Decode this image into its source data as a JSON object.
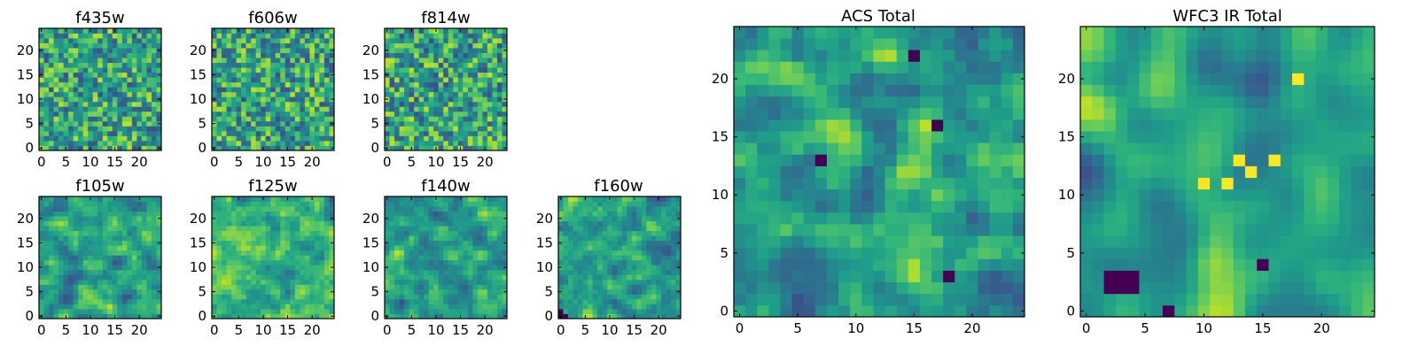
{
  "colormap": "viridis",
  "colors": {
    "frame": "#000000",
    "background": "#ffffff"
  },
  "chart_data": [
    {
      "type": "heatmap",
      "title": "f435w",
      "grid_size": 25,
      "xlim": [
        0,
        25
      ],
      "ylim": [
        0,
        25
      ],
      "x_ticks": [
        0,
        5,
        10,
        15,
        20
      ],
      "y_ticks": [
        0,
        5,
        10,
        15,
        20
      ],
      "texture": {
        "seed": 11,
        "smooth": 0.15,
        "levels": 8,
        "hot": [],
        "cold": []
      }
    },
    {
      "type": "heatmap",
      "title": "f606w",
      "grid_size": 25,
      "xlim": [
        0,
        25
      ],
      "ylim": [
        0,
        25
      ],
      "x_ticks": [
        0,
        5,
        10,
        15,
        20
      ],
      "y_ticks": [
        0,
        5,
        10,
        15,
        20
      ],
      "texture": {
        "seed": 23,
        "smooth": 0.15,
        "levels": 8,
        "hot": [],
        "cold": []
      }
    },
    {
      "type": "heatmap",
      "title": "f814w",
      "grid_size": 25,
      "xlim": [
        0,
        25
      ],
      "ylim": [
        0,
        25
      ],
      "x_ticks": [
        0,
        5,
        10,
        15,
        20
      ],
      "y_ticks": [
        0,
        5,
        10,
        15,
        20
      ],
      "texture": {
        "seed": 37,
        "smooth": 0.15,
        "levels": 8,
        "hot": [],
        "cold": []
      }
    },
    {
      "type": "heatmap",
      "title": "f105w",
      "grid_size": 25,
      "xlim": [
        0,
        25
      ],
      "ylim": [
        0,
        25
      ],
      "x_ticks": [
        0,
        5,
        10,
        15,
        20
      ],
      "y_ticks": [
        0,
        5,
        10,
        15,
        20
      ],
      "texture": {
        "seed": 41,
        "smooth": 0.7,
        "levels": 10,
        "hot": [],
        "cold": []
      }
    },
    {
      "type": "heatmap",
      "title": "f125w",
      "grid_size": 25,
      "xlim": [
        0,
        25
      ],
      "ylim": [
        0,
        25
      ],
      "x_ticks": [
        0,
        5,
        10,
        15,
        20
      ],
      "y_ticks": [
        0,
        5,
        10,
        15,
        20
      ],
      "texture": {
        "seed": 53,
        "smooth": 0.7,
        "levels": 10,
        "hot": [],
        "cold": []
      }
    },
    {
      "type": "heatmap",
      "title": "f140w",
      "grid_size": 25,
      "xlim": [
        0,
        25
      ],
      "ylim": [
        0,
        25
      ],
      "x_ticks": [
        0,
        5,
        10,
        15,
        20
      ],
      "y_ticks": [
        0,
        5,
        10,
        15,
        20
      ],
      "texture": {
        "seed": 67,
        "smooth": 0.7,
        "levels": 10,
        "hot": [],
        "cold": []
      }
    },
    {
      "type": "heatmap",
      "title": "f160w",
      "grid_size": 25,
      "xlim": [
        0,
        25
      ],
      "ylim": [
        0,
        25
      ],
      "x_ticks": [
        0,
        5,
        10,
        15,
        20
      ],
      "y_ticks": [
        0,
        5,
        10,
        15,
        20
      ],
      "texture": {
        "seed": 79,
        "smooth": 0.7,
        "levels": 10,
        "hot": [],
        "cold": [
          [
            0,
            0
          ],
          [
            1,
            0
          ],
          [
            0,
            1
          ]
        ]
      }
    },
    {
      "type": "heatmap",
      "title": "ACS Total",
      "grid_size": 25,
      "xlim": [
        0,
        25
      ],
      "ylim": [
        0,
        25
      ],
      "x_ticks": [
        0,
        10,
        20
      ],
      "x_minor_ticks": [
        5,
        15
      ],
      "y_ticks": [
        0,
        5,
        10,
        15,
        20
      ],
      "texture": {
        "seed": 97,
        "smooth": 0.35,
        "levels": 10,
        "hot": [],
        "cold": [
          [
            7,
            13
          ],
          [
            15,
            22
          ],
          [
            18,
            3
          ],
          [
            17,
            16
          ]
        ]
      }
    },
    {
      "type": "heatmap",
      "title": "WFC3 IR Total",
      "grid_size": 25,
      "xlim": [
        0,
        25
      ],
      "ylim": [
        0,
        25
      ],
      "x_ticks": [
        0,
        10,
        20
      ],
      "x_minor_ticks": [
        5,
        15
      ],
      "y_ticks": [
        0,
        5,
        10,
        15,
        20
      ],
      "texture": {
        "seed": 101,
        "smooth": 1.3,
        "levels": 14,
        "hot": [
          [
            13,
            13
          ],
          [
            14,
            12
          ],
          [
            12,
            11
          ],
          [
            10,
            11
          ],
          [
            16,
            13
          ],
          [
            18,
            20
          ]
        ],
        "cold": [
          [
            2,
            2
          ],
          [
            3,
            2
          ],
          [
            4,
            2
          ],
          [
            2,
            3
          ],
          [
            3,
            3
          ],
          [
            4,
            3
          ],
          [
            15,
            4
          ],
          [
            7,
            0
          ]
        ]
      }
    }
  ]
}
